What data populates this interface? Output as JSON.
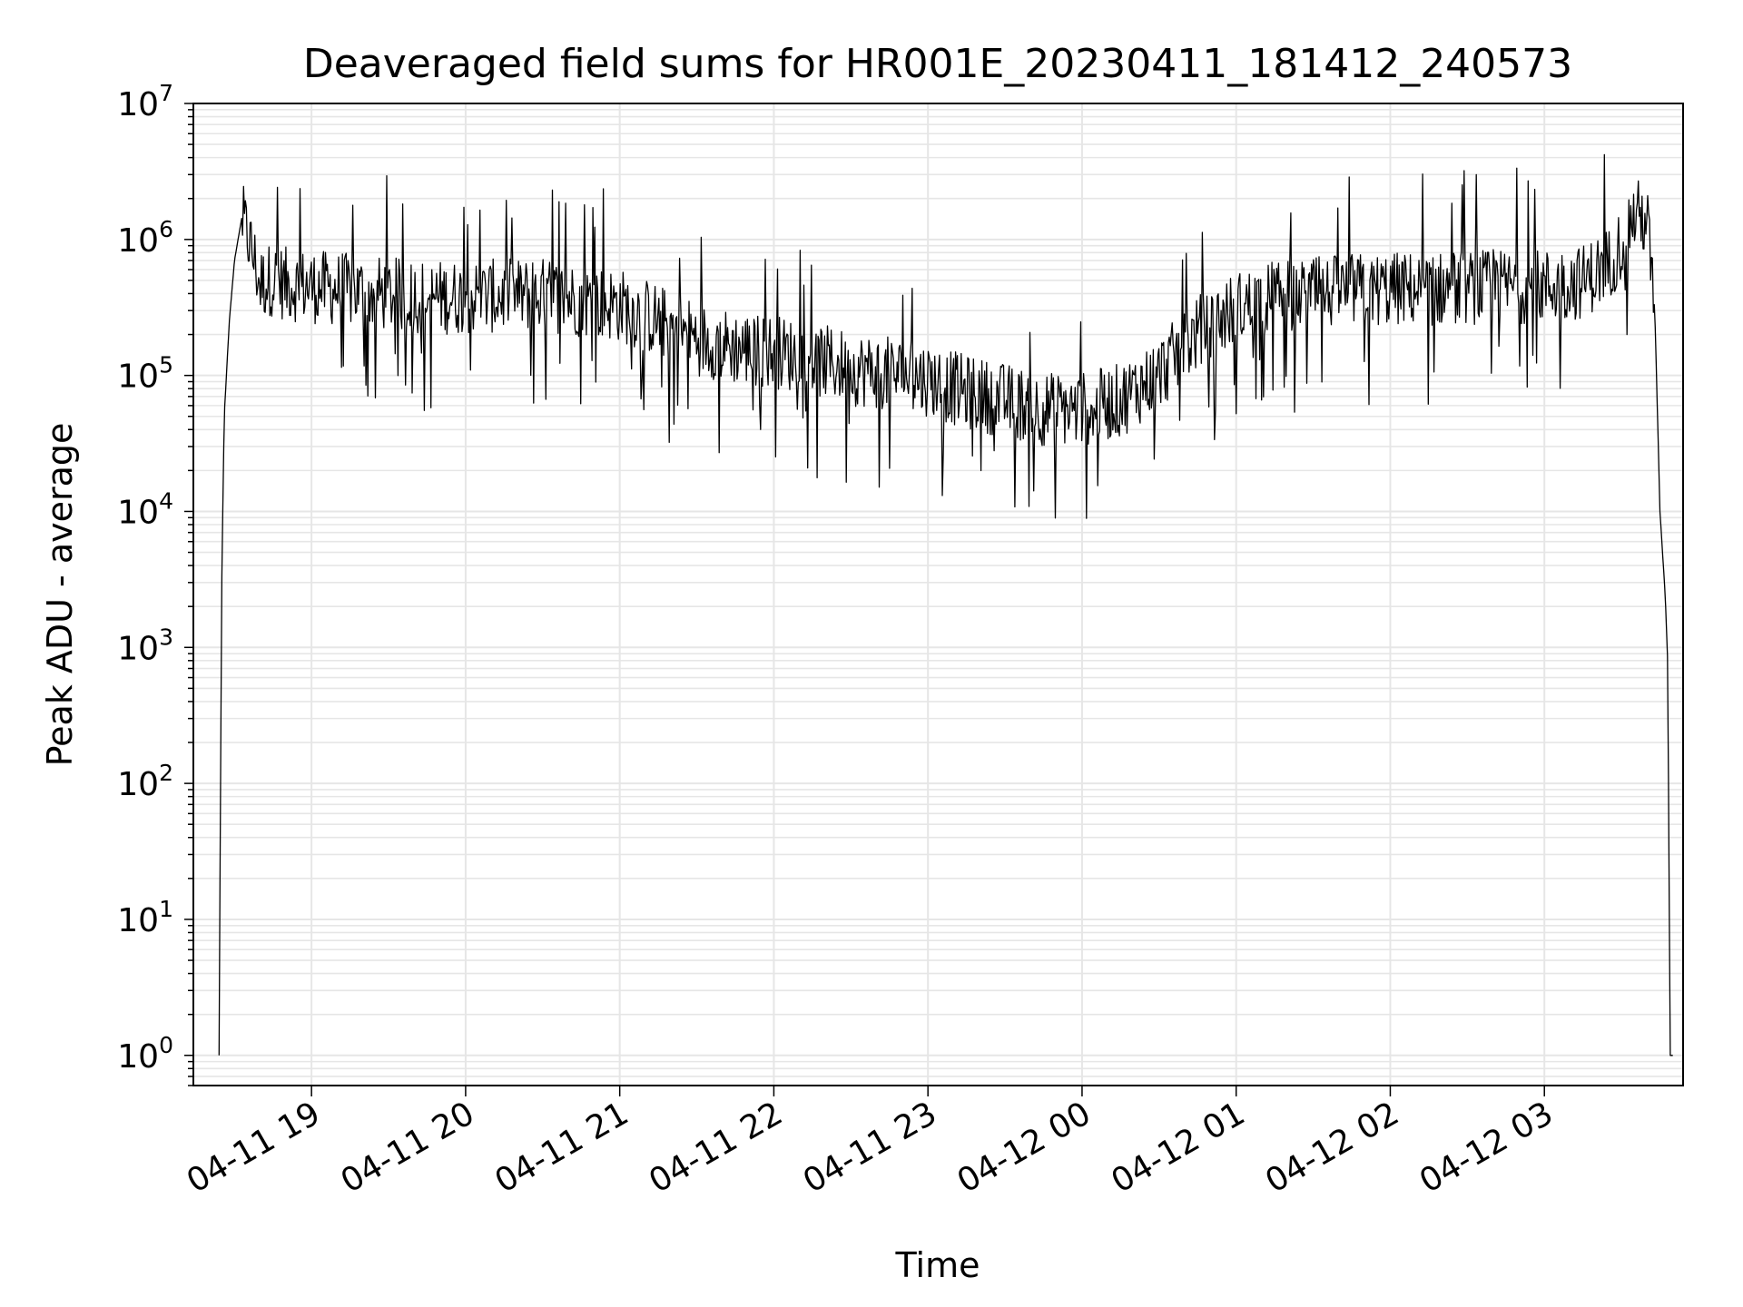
{
  "chart_data": {
    "type": "line",
    "title": "Deaveraged field sums for HR001E_20230411_181412_240573",
    "xlabel": "Time",
    "ylabel": "Peak ADU - average",
    "yscale": "log",
    "xlim": [
      "2023-04-11 18:14",
      "2023-04-12 03:54"
    ],
    "ylim": [
      0.6,
      10000000
    ],
    "grid": true,
    "grid_minor": true,
    "x_ticks": [
      "04-11 19",
      "04-11 20",
      "04-11 21",
      "04-11 22",
      "04-11 23",
      "04-12 00",
      "04-12 01",
      "04-12 02",
      "04-12 03"
    ],
    "y_ticks": [
      {
        "base": "10",
        "exp": "0",
        "value": 1
      },
      {
        "base": "10",
        "exp": "1",
        "value": 10
      },
      {
        "base": "10",
        "exp": "2",
        "value": 100
      },
      {
        "base": "10",
        "exp": "3",
        "value": 1000
      },
      {
        "base": "10",
        "exp": "4",
        "value": 10000
      },
      {
        "base": "10",
        "exp": "5",
        "value": 100000
      },
      {
        "base": "10",
        "exp": "6",
        "value": 1000000
      },
      {
        "base": "10",
        "exp": "7",
        "value": 10000000
      }
    ],
    "series": [
      {
        "color": "#000000",
        "x": [
          "2023-04-11 18:24",
          "2023-04-11 18:25",
          "2023-04-11 18:26",
          "2023-04-11 18:28",
          "2023-04-11 18:30",
          "2023-04-11 18:33",
          "2023-04-11 18:36",
          "2023-04-11 18:40",
          "2023-04-11 18:45",
          "2023-04-11 18:50",
          "2023-04-11 19:00",
          "2023-04-11 19:15",
          "2023-04-11 19:30",
          "2023-04-11 19:45",
          "2023-04-11 20:00",
          "2023-04-11 20:15",
          "2023-04-11 20:30",
          "2023-04-11 20:45",
          "2023-04-11 21:00",
          "2023-04-11 21:15",
          "2023-04-11 21:30",
          "2023-04-11 21:45",
          "2023-04-11 22:00",
          "2023-04-11 22:15",
          "2023-04-11 22:30",
          "2023-04-11 22:45",
          "2023-04-11 23:00",
          "2023-04-11 23:15",
          "2023-04-11 23:30",
          "2023-04-11 23:45",
          "2023-04-12 00:00",
          "2023-04-12 00:15",
          "2023-04-12 00:30",
          "2023-04-12 00:45",
          "2023-04-12 01:00",
          "2023-04-12 01:15",
          "2023-04-12 01:30",
          "2023-04-12 01:45",
          "2023-04-12 02:00",
          "2023-04-12 02:15",
          "2023-04-12 02:30",
          "2023-04-12 02:45",
          "2023-04-12 03:00",
          "2023-04-12 03:15",
          "2023-04-12 03:25",
          "2023-04-12 03:30",
          "2023-04-12 03:35",
          "2023-04-12 03:40",
          "2023-04-12 03:43",
          "2023-04-12 03:45",
          "2023-04-12 03:47",
          "2023-04-12 03:48",
          "2023-04-12 03:49",
          "2023-04-12 03:50"
        ],
        "y": [
          1,
          2500,
          50000,
          250000,
          700000,
          1500000,
          1000000,
          500000,
          550000,
          500000,
          480000,
          450000,
          420000,
          400000,
          400000,
          410000,
          420000,
          380000,
          350000,
          270000,
          200000,
          170000,
          160000,
          140000,
          120000,
          110000,
          100000,
          80000,
          70000,
          60000,
          60000,
          70000,
          110000,
          220000,
          330000,
          400000,
          420000,
          450000,
          460000,
          460000,
          470000,
          480000,
          480000,
          520000,
          700000,
          1000000,
          1600000,
          1500000,
          300000,
          10000,
          2500,
          800,
          1,
          1
        ]
      }
    ]
  }
}
